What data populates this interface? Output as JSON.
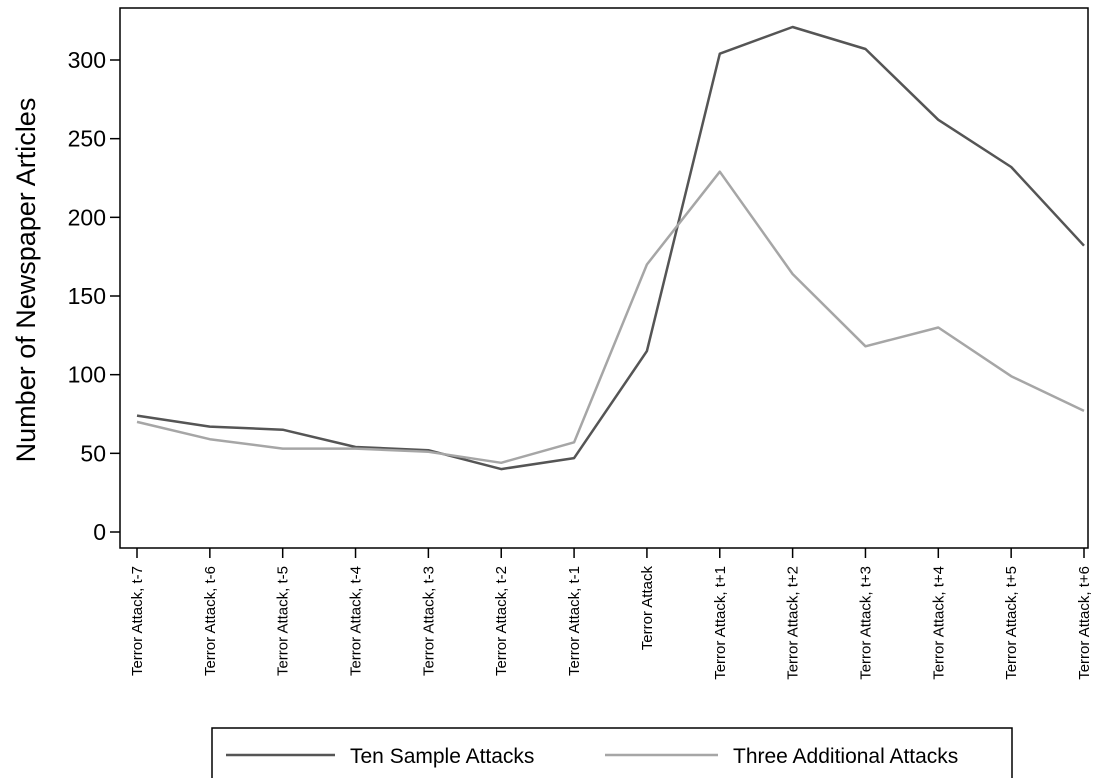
{
  "chart_data": {
    "type": "line",
    "ylabel": "Number of Newspaper Articles",
    "xlabel": "",
    "ylim": [
      0,
      325
    ],
    "yticks": [
      0,
      50,
      100,
      150,
      200,
      250,
      300
    ],
    "grid": false,
    "legend_position": "bottom",
    "categories": [
      "Terror Attack, t-7",
      "Terror Attack, t-6",
      "Terror Attack, t-5",
      "Terror Attack, t-4",
      "Terror Attack, t-3",
      "Terror Attack, t-2",
      "Terror Attack, t-1",
      "Terror Attack",
      "Terror Attack, t+1",
      "Terror Attack, t+2",
      "Terror Attack, t+3",
      "Terror Attack, t+4",
      "Terror Attack, t+5",
      "Terror Attack, t+6"
    ],
    "series": [
      {
        "name": "Ten Sample Attacks",
        "color": "#555555",
        "values": [
          74,
          67,
          65,
          54,
          52,
          40,
          47,
          115,
          304,
          321,
          307,
          262,
          232,
          182
        ]
      },
      {
        "name": "Three Additional Attacks",
        "color": "#a6a6a6",
        "values": [
          70,
          59,
          53,
          53,
          51,
          44,
          57,
          170,
          229,
          164,
          118,
          130,
          99,
          77
        ]
      }
    ]
  }
}
